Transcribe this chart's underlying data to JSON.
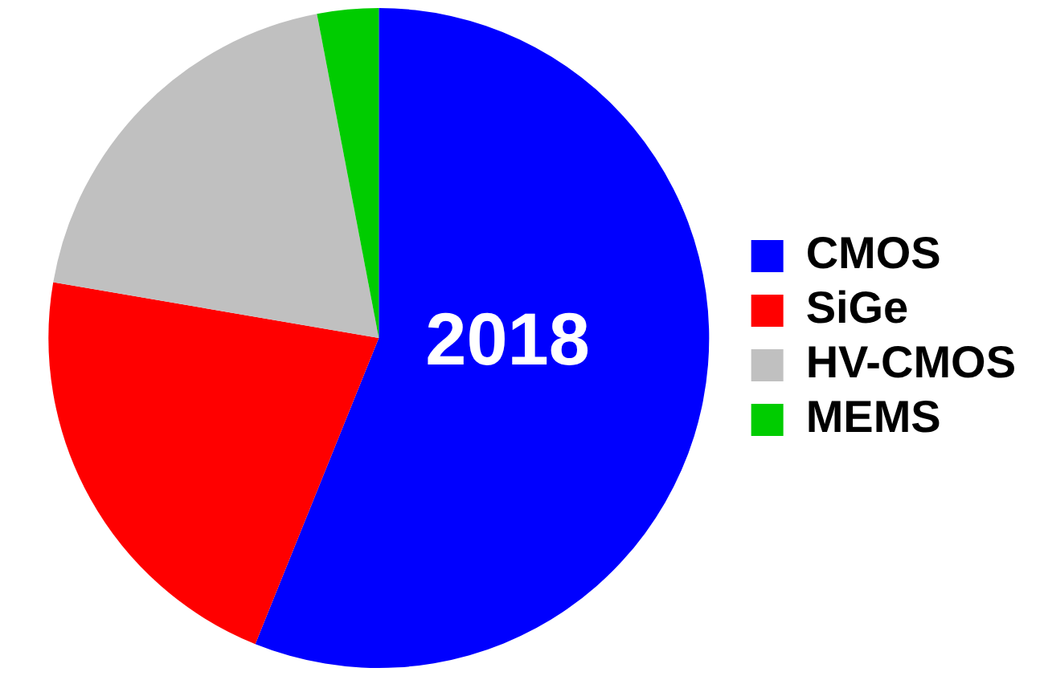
{
  "chart_data": {
    "type": "pie",
    "categories": [
      "CMOS",
      "SiGe",
      "HV-CMOS",
      "MEMS"
    ],
    "values": [
      56.1,
      21.6,
      19.3,
      3.0
    ],
    "colors": [
      "#0000ff",
      "#ff0000",
      "#c0c0c0",
      "#00cc00"
    ],
    "annotations": [
      "2018"
    ],
    "legend": "right"
  }
}
